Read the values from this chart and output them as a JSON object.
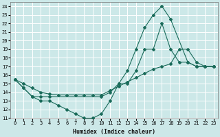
{
  "xlabel": "Humidex (Indice chaleur)",
  "bg_color": "#cce8e8",
  "line_color": "#1a6b5a",
  "grid_color": "#ffffff",
  "xlim": [
    -0.5,
    23.5
  ],
  "ylim": [
    11,
    24.5
  ],
  "xticks": [
    0,
    1,
    2,
    3,
    4,
    5,
    6,
    7,
    8,
    9,
    10,
    11,
    12,
    13,
    14,
    15,
    16,
    17,
    18,
    19,
    20,
    21,
    22,
    23
  ],
  "yticks": [
    11,
    12,
    13,
    14,
    15,
    16,
    17,
    18,
    19,
    20,
    21,
    22,
    23,
    24
  ],
  "line1_x": [
    0,
    1,
    2,
    3,
    4,
    5,
    6,
    7,
    8,
    9,
    10,
    11,
    12,
    13,
    14,
    15,
    16,
    17,
    18,
    19,
    20,
    21,
    22,
    23
  ],
  "line1_y": [
    15.5,
    14.5,
    13.5,
    13.0,
    13.0,
    12.5,
    12.0,
    11.5,
    11.0,
    11.0,
    11.5,
    13.0,
    15.0,
    15.0,
    16.5,
    19.0,
    19.0,
    22.0,
    19.0,
    17.5,
    17.5,
    17.0,
    17.0,
    17.0
  ],
  "line2_x": [
    0,
    1,
    2,
    3,
    4,
    10,
    11,
    12,
    13,
    14,
    15,
    16,
    17,
    18,
    20,
    21,
    22,
    23
  ],
  "line2_y": [
    15.5,
    14.5,
    13.5,
    13.5,
    13.5,
    13.5,
    14.0,
    15.0,
    16.5,
    19.0,
    21.5,
    23.0,
    24.0,
    22.5,
    17.5,
    17.0,
    17.0,
    17.0
  ],
  "line3_x": [
    0,
    1,
    2,
    3,
    4,
    5,
    6,
    7,
    8,
    9,
    10,
    11,
    12,
    13,
    14,
    15,
    16,
    17,
    18,
    19,
    20,
    21,
    22,
    23
  ],
  "line3_y": [
    15.5,
    15.0,
    14.5,
    14.0,
    13.8,
    13.7,
    13.7,
    13.7,
    13.7,
    13.7,
    13.7,
    14.2,
    14.7,
    15.2,
    15.7,
    16.2,
    16.7,
    17.0,
    17.3,
    19.0,
    19.0,
    17.5,
    17.0,
    17.0
  ]
}
